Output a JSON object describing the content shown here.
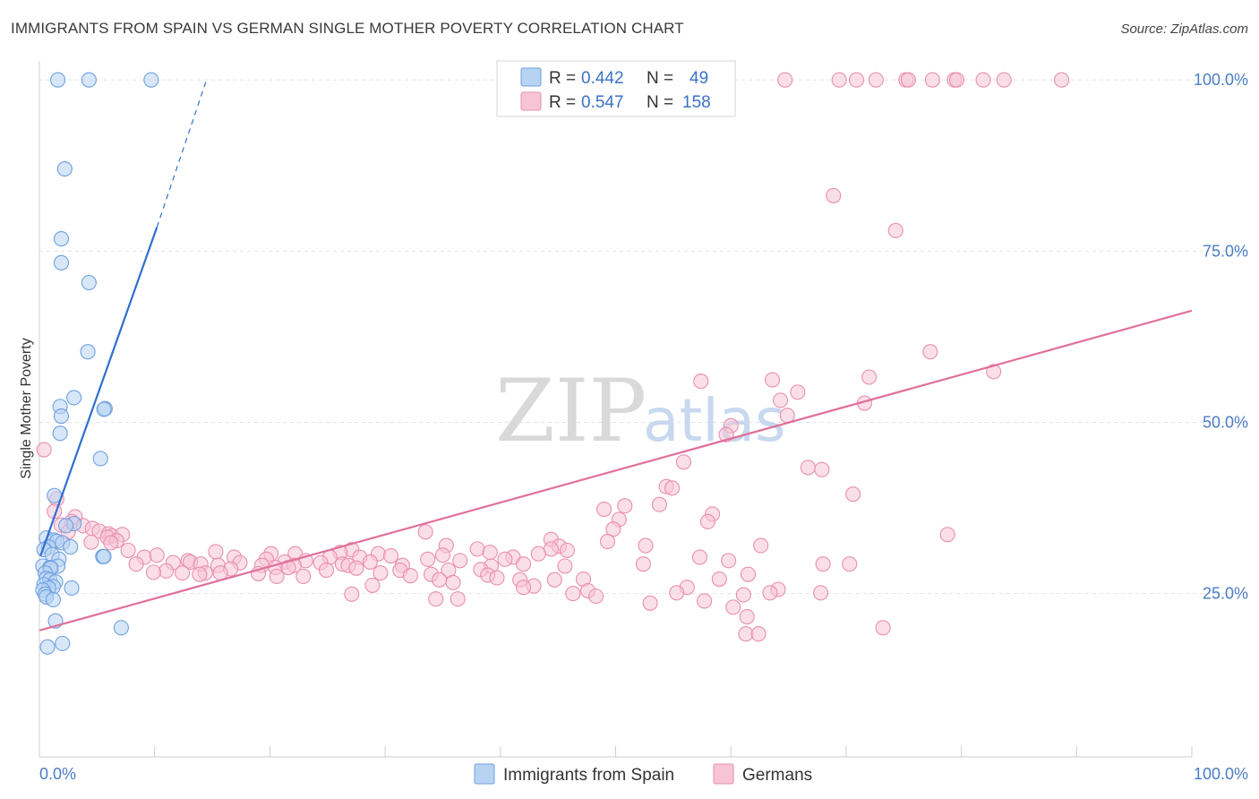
{
  "header": {
    "title": "IMMIGRANTS FROM SPAIN VS GERMAN SINGLE MOTHER POVERTY CORRELATION CHART",
    "source": "Source: ZipAtlas.com"
  },
  "watermark": {
    "zip": "ZIP",
    "atlas": "atlas"
  },
  "colors": {
    "blue_fill": "#b8d3f2",
    "blue_stroke": "#6ea0e0",
    "blue_line": "#2f6fd0",
    "pink_fill": "#f7c4d6",
    "pink_stroke": "#e98eb0",
    "pink_line": "#e0709a",
    "grid": "#e3e3e3",
    "tick_text": "#4a7cc4"
  },
  "legend": {
    "series": [
      {
        "r_label": "R = ",
        "r_value": "0.442",
        "n_label": "N = ",
        "n_value": "49"
      },
      {
        "r_label": "R = ",
        "r_value": "0.547",
        "n_label": "N = ",
        "n_value": "158"
      }
    ]
  },
  "bottom_legend": [
    "Immigrants from Spain",
    "Germans"
  ],
  "chart_data": {
    "type": "scatter",
    "title": "IMMIGRANTS FROM SPAIN VS GERMAN SINGLE MOTHER POVERTY CORRELATION CHART",
    "xlabel": "",
    "ylabel": "Single Mother Poverty",
    "xlim": [
      0,
      100
    ],
    "ylim": [
      0,
      102.5
    ],
    "x_tick_labels": [
      "0.0%",
      "100.0%"
    ],
    "y_tick_values": [
      25,
      50,
      75,
      100
    ],
    "y_tick_labels": [
      "25.0%",
      "50.0%",
      "75.0%",
      "100.0%"
    ],
    "grid": true,
    "series": [
      {
        "name": "Immigrants from Spain",
        "r": 0.442,
        "n": 49,
        "trend": {
          "x0": 0.1,
          "y0": 30.5,
          "x1": 10.2,
          "y1": 78.5,
          "dash_x1": 14.5,
          "dash_y1": 100
        },
        "points": [
          [
            1.6,
            100
          ],
          [
            4.3,
            100
          ],
          [
            9.7,
            100
          ],
          [
            2.2,
            87
          ],
          [
            1.9,
            76.8
          ],
          [
            1.9,
            73.3
          ],
          [
            4.3,
            70.4
          ],
          [
            4.2,
            60.3
          ],
          [
            3.0,
            53.6
          ],
          [
            1.8,
            52.3
          ],
          [
            1.9,
            50.9
          ],
          [
            5.7,
            52
          ],
          [
            5.6,
            51.9
          ],
          [
            1.8,
            48.4
          ],
          [
            5.3,
            44.7
          ],
          [
            1.3,
            39.3
          ],
          [
            3.0,
            35.2
          ],
          [
            2.3,
            34.9
          ],
          [
            0.6,
            33.1
          ],
          [
            1.3,
            32.8
          ],
          [
            1.5,
            32.6
          ],
          [
            2.0,
            32.4
          ],
          [
            0.8,
            31.8
          ],
          [
            2.7,
            31.8
          ],
          [
            0.4,
            31.4
          ],
          [
            1.1,
            30.7
          ],
          [
            5.5,
            30.4
          ],
          [
            5.6,
            30.4
          ],
          [
            1.7,
            30.0
          ],
          [
            1.6,
            29.0
          ],
          [
            0.3,
            29.0
          ],
          [
            0.9,
            28.8
          ],
          [
            1.0,
            28.7
          ],
          [
            0.5,
            28.0
          ],
          [
            0.6,
            27.2
          ],
          [
            0.9,
            27.0
          ],
          [
            1.4,
            26.7
          ],
          [
            0.4,
            26.3
          ],
          [
            1.2,
            26.0
          ],
          [
            0.8,
            25.8
          ],
          [
            2.8,
            25.8
          ],
          [
            0.3,
            25.5
          ],
          [
            0.5,
            24.9
          ],
          [
            0.6,
            24.5
          ],
          [
            1.2,
            24.1
          ],
          [
            1.4,
            21.0
          ],
          [
            7.1,
            20.0
          ],
          [
            2.0,
            17.7
          ],
          [
            0.7,
            17.2
          ]
        ]
      },
      {
        "name": "Germans",
        "r": 0.547,
        "n": 158,
        "trend": {
          "x0": 0,
          "y0": 19.6,
          "x1": 100,
          "y1": 66.3
        },
        "points": [
          [
            64.7,
            100
          ],
          [
            69.4,
            100
          ],
          [
            70.9,
            100
          ],
          [
            72.6,
            100
          ],
          [
            75.2,
            100
          ],
          [
            75.4,
            100
          ],
          [
            77.5,
            100
          ],
          [
            79.4,
            100
          ],
          [
            79.6,
            100
          ],
          [
            81.9,
            100
          ],
          [
            83.7,
            100
          ],
          [
            88.7,
            100
          ],
          [
            68.9,
            83.1
          ],
          [
            74.3,
            78.0
          ],
          [
            77.3,
            60.3
          ],
          [
            82.8,
            57.4
          ],
          [
            57.4,
            56.0
          ],
          [
            63.6,
            56.2
          ],
          [
            72.0,
            56.6
          ],
          [
            65.8,
            54.4
          ],
          [
            64.3,
            53.2
          ],
          [
            71.6,
            52.8
          ],
          [
            64.9,
            51.0
          ],
          [
            60.0,
            49.5
          ],
          [
            59.6,
            48.2
          ],
          [
            0.4,
            46.0
          ],
          [
            55.9,
            44.2
          ],
          [
            66.7,
            43.4
          ],
          [
            67.9,
            43.1
          ],
          [
            54.4,
            40.6
          ],
          [
            54.9,
            40.4
          ],
          [
            70.6,
            39.5
          ],
          [
            1.5,
            38.8
          ],
          [
            53.8,
            38.0
          ],
          [
            50.8,
            37.8
          ],
          [
            49.0,
            37.3
          ],
          [
            1.3,
            37.0
          ],
          [
            58.4,
            36.6
          ],
          [
            3.1,
            36.2
          ],
          [
            50.3,
            35.8
          ],
          [
            2.8,
            35.5
          ],
          [
            58.0,
            35.5
          ],
          [
            1.9,
            35.0
          ],
          [
            3.8,
            34.9
          ],
          [
            4.6,
            34.5
          ],
          [
            49.8,
            34.4
          ],
          [
            5.2,
            34.1
          ],
          [
            2.5,
            34.0
          ],
          [
            6.0,
            33.7
          ],
          [
            6.3,
            33.4
          ],
          [
            7.2,
            33.6
          ],
          [
            5.9,
            33.2
          ],
          [
            6.7,
            32.7
          ],
          [
            33.5,
            34.0
          ],
          [
            78.8,
            33.6
          ],
          [
            4.5,
            32.5
          ],
          [
            6.2,
            32.4
          ],
          [
            49.3,
            32.6
          ],
          [
            44.4,
            32.9
          ],
          [
            35.3,
            32.0
          ],
          [
            52.6,
            32.0
          ],
          [
            62.6,
            32.0
          ],
          [
            45.1,
            31.9
          ],
          [
            7.7,
            31.3
          ],
          [
            27.1,
            31.4
          ],
          [
            38.0,
            31.5
          ],
          [
            44.4,
            31.5
          ],
          [
            45.8,
            31.3
          ],
          [
            39.1,
            31.0
          ],
          [
            15.3,
            31.1
          ],
          [
            26.1,
            31.0
          ],
          [
            29.4,
            30.8
          ],
          [
            20.1,
            30.8
          ],
          [
            22.2,
            30.8
          ],
          [
            35.0,
            30.6
          ],
          [
            43.3,
            30.8
          ],
          [
            27.8,
            30.3
          ],
          [
            30.5,
            30.5
          ],
          [
            9.1,
            30.3
          ],
          [
            10.2,
            30.6
          ],
          [
            16.9,
            30.3
          ],
          [
            41.1,
            30.3
          ],
          [
            57.3,
            30.3
          ],
          [
            25.2,
            30.3
          ],
          [
            19.7,
            30.0
          ],
          [
            33.7,
            30.0
          ],
          [
            40.4,
            30.0
          ],
          [
            12.9,
            29.8
          ],
          [
            23.1,
            29.8
          ],
          [
            36.5,
            29.8
          ],
          [
            21.3,
            29.6
          ],
          [
            59.8,
            29.8
          ],
          [
            28.7,
            29.6
          ],
          [
            13.1,
            29.6
          ],
          [
            11.6,
            29.5
          ],
          [
            17.4,
            29.5
          ],
          [
            24.4,
            29.5
          ],
          [
            26.3,
            29.3
          ],
          [
            14.0,
            29.3
          ],
          [
            8.4,
            29.3
          ],
          [
            42.0,
            29.3
          ],
          [
            22.1,
            29.1
          ],
          [
            15.5,
            29.1
          ],
          [
            26.8,
            29.1
          ],
          [
            19.3,
            29.1
          ],
          [
            31.5,
            29.1
          ],
          [
            52.4,
            29.3
          ],
          [
            68.0,
            29.3
          ],
          [
            70.3,
            29.3
          ],
          [
            39.2,
            29.0
          ],
          [
            45.6,
            29.0
          ],
          [
            20.5,
            28.8
          ],
          [
            21.6,
            28.8
          ],
          [
            27.5,
            28.7
          ],
          [
            16.6,
            28.6
          ],
          [
            38.3,
            28.5
          ],
          [
            24.9,
            28.4
          ],
          [
            31.3,
            28.4
          ],
          [
            35.5,
            28.4
          ],
          [
            11.0,
            28.3
          ],
          [
            9.9,
            28.1
          ],
          [
            29.6,
            28.0
          ],
          [
            12.4,
            28.0
          ],
          [
            14.4,
            28.0
          ],
          [
            15.7,
            28.0
          ],
          [
            19.0,
            27.9
          ],
          [
            13.9,
            27.8
          ],
          [
            34.0,
            27.8
          ],
          [
            38.9,
            27.7
          ],
          [
            61.5,
            27.8
          ],
          [
            32.2,
            27.6
          ],
          [
            20.6,
            27.5
          ],
          [
            22.9,
            27.5
          ],
          [
            39.7,
            27.3
          ],
          [
            47.2,
            27.1
          ],
          [
            59.0,
            27.1
          ],
          [
            44.7,
            27.0
          ],
          [
            34.7,
            27.0
          ],
          [
            41.7,
            27.0
          ],
          [
            35.9,
            26.6
          ],
          [
            28.9,
            26.2
          ],
          [
            42.9,
            26.1
          ],
          [
            42.0,
            25.9
          ],
          [
            56.2,
            25.9
          ],
          [
            64.1,
            25.6
          ],
          [
            47.6,
            25.4
          ],
          [
            55.3,
            25.1
          ],
          [
            67.8,
            25.1
          ],
          [
            63.4,
            25.1
          ],
          [
            46.3,
            25.0
          ],
          [
            27.1,
            24.9
          ],
          [
            61.1,
            24.8
          ],
          [
            48.3,
            24.6
          ],
          [
            57.7,
            23.9
          ],
          [
            53.0,
            23.6
          ],
          [
            60.2,
            23.0
          ],
          [
            61.4,
            21.6
          ],
          [
            73.2,
            20.0
          ],
          [
            61.3,
            19.1
          ],
          [
            62.4,
            19.1
          ],
          [
            34.4,
            24.2
          ],
          [
            36.3,
            24.2
          ]
        ]
      }
    ]
  }
}
